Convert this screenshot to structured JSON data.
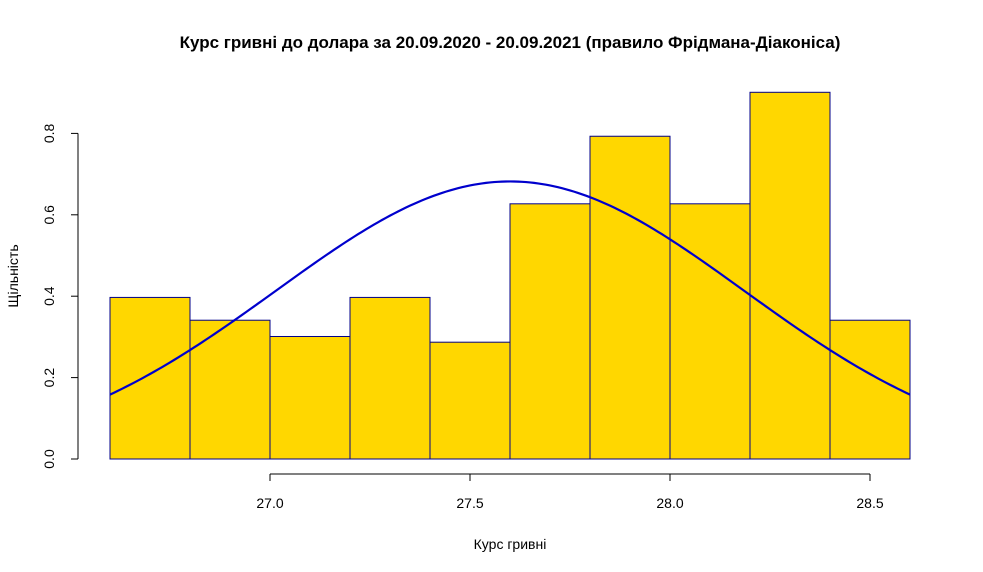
{
  "chart_data": {
    "type": "bar",
    "title": "Курс гривні до долара за 20.09.2020 - 20.09.2021 (правило Фрідмана-Діаконіса)",
    "xlabel": "Курс гривні",
    "ylabel": "Щільність",
    "xlim": [
      26.6,
      28.6
    ],
    "ylim": [
      0,
      0.9
    ],
    "x_ticks": [
      27.0,
      27.5,
      28.0,
      28.5
    ],
    "x_tick_labels": [
      "27.0",
      "27.5",
      "28.0",
      "28.5"
    ],
    "y_ticks": [
      0.0,
      0.2,
      0.4,
      0.6,
      0.8
    ],
    "y_tick_labels": [
      "0.0",
      "0.2",
      "0.4",
      "0.6",
      "0.8"
    ],
    "bin_edges": [
      26.6,
      26.8,
      27.0,
      27.2,
      27.4,
      27.6,
      27.8,
      28.0,
      28.2,
      28.4,
      28.6
    ],
    "values": [
      0.397,
      0.341,
      0.301,
      0.397,
      0.287,
      0.627,
      0.793,
      0.627,
      0.901,
      0.341
    ],
    "bar_color": "#FFD700",
    "bar_border_color": "#00008B",
    "density_curve": {
      "type": "normal",
      "mean": 27.6,
      "sd": 0.585,
      "color": "#0000CD"
    },
    "grid": false,
    "legend": "none"
  }
}
